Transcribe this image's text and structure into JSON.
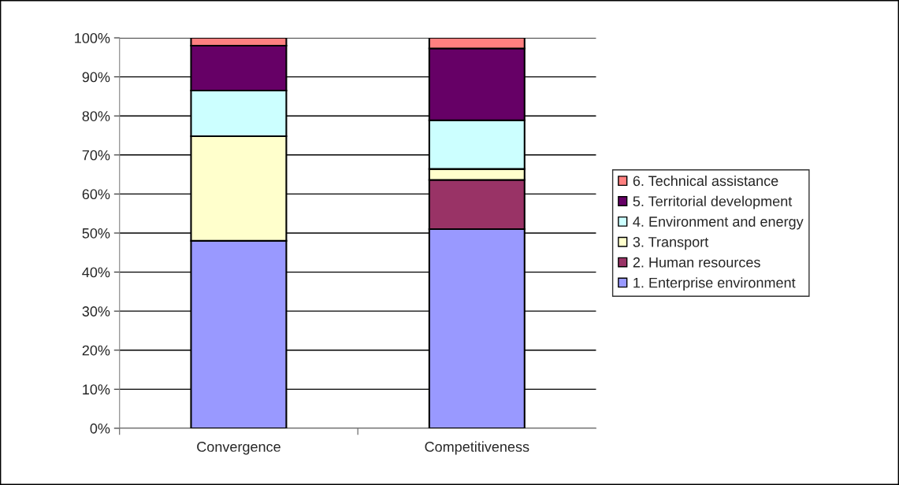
{
  "chart_data": {
    "type": "bar",
    "stacked": true,
    "categories": [
      "Convergence",
      "Competitiveness"
    ],
    "series": [
      {
        "name": "1. Enterprise environment",
        "color": "#9999ff",
        "values": [
          48,
          51
        ]
      },
      {
        "name": "2. Human resources",
        "color": "#993366",
        "values": [
          0,
          12.6
        ]
      },
      {
        "name": "3. Transport",
        "color": "#ffffcc",
        "values": [
          26.8,
          2.8
        ]
      },
      {
        "name": "4. Environment and energy",
        "color": "#ccffff",
        "values": [
          11.7,
          12.5
        ]
      },
      {
        "name": "5. Territorial development",
        "color": "#660066",
        "values": [
          11.5,
          18.4
        ]
      },
      {
        "name": "6. Technical assistance",
        "color": "#ff8080",
        "values": [
          2.0,
          2.7
        ]
      }
    ],
    "ylim": [
      0,
      100
    ],
    "yticks": [
      {
        "value": 0,
        "label": "0%"
      },
      {
        "value": 10,
        "label": "10%"
      },
      {
        "value": 20,
        "label": "20%"
      },
      {
        "value": 30,
        "label": "30%"
      },
      {
        "value": 40,
        "label": "40%"
      },
      {
        "value": 50,
        "label": "50%"
      },
      {
        "value": 60,
        "label": "60%"
      },
      {
        "value": 70,
        "label": "70%"
      },
      {
        "value": 80,
        "label": "80%"
      },
      {
        "value": 90,
        "label": "90%"
      },
      {
        "value": 100,
        "label": "100%"
      }
    ],
    "grid": "y",
    "legend": "right"
  }
}
